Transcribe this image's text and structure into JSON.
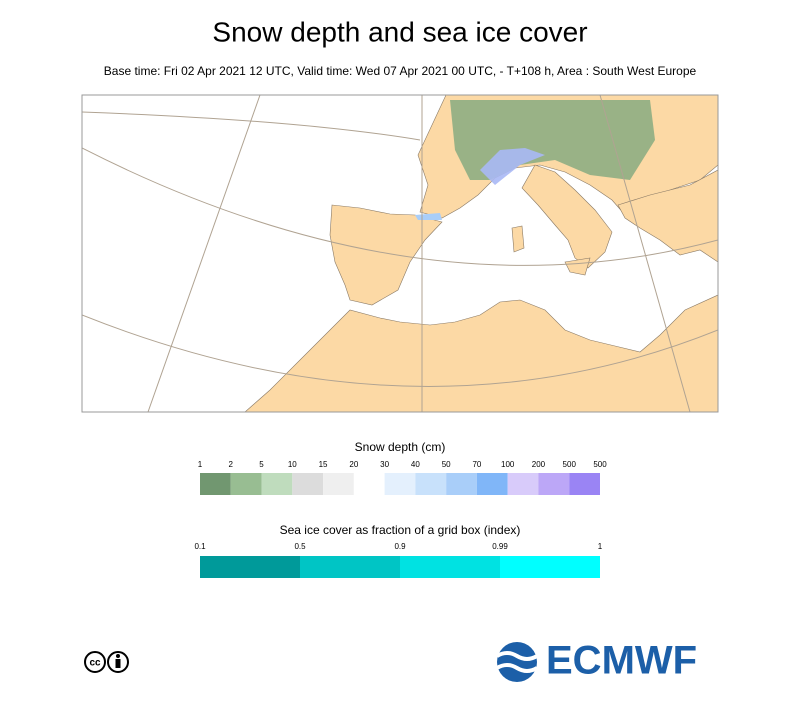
{
  "title": "Snow depth and sea ice cover",
  "subtitle": "Base time: Fri 02 Apr 2021 12 UTC, Valid time: Wed 07 Apr 2021 00 UTC, - T+108 h, Area : South West Europe",
  "snow_legend": {
    "title": "Snow depth (cm)",
    "levels": [
      "1",
      "2",
      "5",
      "10",
      "15",
      "20",
      "30",
      "40",
      "50",
      "70",
      "100",
      "200",
      "500",
      "500"
    ],
    "colors": [
      "#719770",
      "#98bd92",
      "#bfdcbd",
      "#dcdcdc",
      "#efefef",
      "#ffffff",
      "#e4f0fd",
      "#c8e1fb",
      "#a9cef9",
      "#80b6f8",
      "#d8cbfa",
      "#bca7f7",
      "#9a84f4"
    ]
  },
  "ice_legend": {
    "title": "Sea ice cover as fraction of a grid box (index)",
    "levels": [
      "0.1",
      "0.5",
      "0.9",
      "0.99",
      "1"
    ],
    "colors": [
      "#009a9a",
      "#00c5c5",
      "#00e2e2",
      "#00ffff"
    ]
  },
  "footer": {
    "license": "cc",
    "brand": "ECMWF"
  }
}
